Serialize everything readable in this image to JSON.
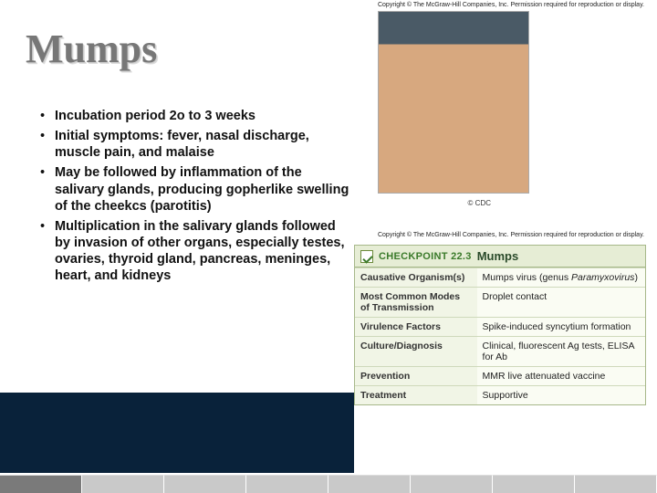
{
  "title": "Mumps",
  "copyright_top": "Copyright © The McGraw-Hill Companies, Inc. Permission required for reproduction or display.",
  "copyright_mid": "Copyright © The McGraw-Hill Companies, Inc. Permission required for reproduction or display.",
  "photo_credit": "© CDC",
  "bullets": {
    "marker": "•",
    "items": [
      "Incubation period 2o to 3 weeks",
      "Initial symptoms: fever, nasal discharge, muscle pain, and malaise",
      "May be followed by inflammation of the salivary glands, producing gopherlike swelling of the cheekcs (parotitis)",
      "Multiplication in the salivary glands followed by invasion of other organs, especially testes, ovaries, thyroid gland, pancreas, meninges, heart, and kidneys"
    ]
  },
  "checkpoint": {
    "label": "CHECKPOINT 22.3",
    "topic": "Mumps",
    "rows": [
      {
        "k": "Causative Organism(s)",
        "v_pre": "Mumps virus (genus ",
        "v_ital": "Paramyxovirus",
        "v_post": ")"
      },
      {
        "k": "Most Common Modes of Transmission",
        "v": "Droplet contact"
      },
      {
        "k": "Virulence Factors",
        "v": "Spike-induced syncytium formation"
      },
      {
        "k": "Culture/Diagnosis",
        "v": "Clinical, fluorescent Ag tests, ELISA for Ab"
      },
      {
        "k": "Prevention",
        "v": "MMR live attenuated vaccine"
      },
      {
        "k": "Treatment",
        "v": "Supportive"
      }
    ]
  },
  "colors": {
    "title": "#777777",
    "checkpoint_header_bg": "#e6edd5",
    "checkpoint_border": "#a7b88a",
    "checkpoint_keycol_bg": "#f1f5e6",
    "checkpoint_valcol_bg": "#fafcf3",
    "nav_band": "#09223a"
  }
}
